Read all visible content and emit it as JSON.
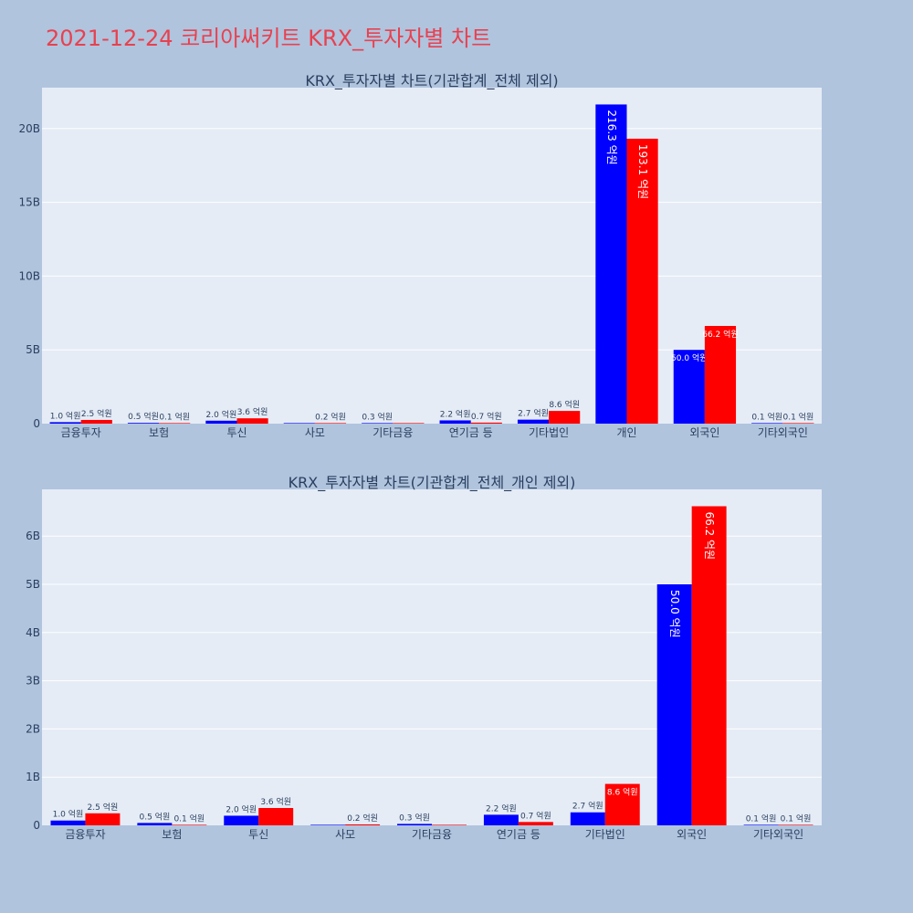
{
  "page": {
    "title": "2021-12-24 코리아써키트 KRX_투자자별 차트"
  },
  "colors": {
    "background": "#b0c4de",
    "plot_bg": "#e5ecf6",
    "sell": "#0000ff",
    "buy": "#ff0000",
    "title": "#e8414f",
    "text": "#2a3f5f"
  },
  "chart_data": [
    {
      "type": "bar",
      "title": "KRX_투자자별 차트(기관합계_전체 제외)",
      "categories": [
        "금융투자",
        "보험",
        "투신",
        "사모",
        "기타금융",
        "연기금 등",
        "기타법인",
        "개인",
        "외국인",
        "기타외국인"
      ],
      "series": [
        {
          "color": "#0000ff",
          "values": [
            100000000,
            50000000,
            200000000,
            0,
            30000000,
            220000000,
            270000000,
            21630000000,
            5000000000,
            10000000
          ],
          "labels": [
            "1.0 억원",
            "0.5 억원",
            "2.0 억원",
            "",
            "0.3 억원",
            "2.2 억원",
            "2.7 억원",
            "216.3 억원",
            "50.0 억원",
            "0.1 억원"
          ]
        },
        {
          "color": "#ff0000",
          "values": [
            250000000,
            10000000,
            360000000,
            20000000,
            0,
            70000000,
            860000000,
            19310000000,
            6620000000,
            10000000
          ],
          "labels": [
            "2.5 억원",
            "0.1 억원",
            "3.6 억원",
            "0.2 억원",
            "",
            "0.7 억원",
            "8.6 억원",
            "193.1 억원",
            "66.2 억원",
            "0.1 억원"
          ]
        }
      ],
      "yticks": [
        0,
        5000000000,
        10000000000,
        15000000000,
        20000000000
      ],
      "ytick_labels": [
        "0",
        "5B",
        "10B",
        "15B",
        "20B"
      ],
      "ylim": [
        0,
        22770000000
      ],
      "grid": true,
      "legend": "none"
    },
    {
      "type": "bar",
      "title": "KRX_투자자별 차트(기관합계_전체_개인 제외)",
      "categories": [
        "금융투자",
        "보험",
        "투신",
        "사모",
        "기타금융",
        "연기금 등",
        "기타법인",
        "외국인",
        "기타외국인"
      ],
      "series": [
        {
          "color": "#0000ff",
          "values": [
            100000000,
            50000000,
            200000000,
            0,
            30000000,
            220000000,
            270000000,
            5000000000,
            10000000
          ],
          "labels": [
            "1.0 억원",
            "0.5 억원",
            "2.0 억원",
            "",
            "0.3 억원",
            "2.2 억원",
            "2.7 억원",
            "50.0 억원",
            "0.1 억원"
          ]
        },
        {
          "color": "#ff0000",
          "values": [
            250000000,
            10000000,
            360000000,
            20000000,
            0,
            70000000,
            860000000,
            6620000000,
            10000000
          ],
          "labels": [
            "2.5 억원",
            "0.1 억원",
            "3.6 억원",
            "0.2 억원",
            "",
            "0.7 억원",
            "8.6 억원",
            "66.2 억원",
            "0.1 억원"
          ]
        }
      ],
      "yticks": [
        0,
        1000000000,
        2000000000,
        3000000000,
        4000000000,
        5000000000,
        6000000000
      ],
      "ytick_labels": [
        "0",
        "1B",
        "2B",
        "3B",
        "4B",
        "5B",
        "6B"
      ],
      "ylim": [
        0,
        6970000000
      ],
      "grid": true,
      "legend": "none"
    }
  ]
}
